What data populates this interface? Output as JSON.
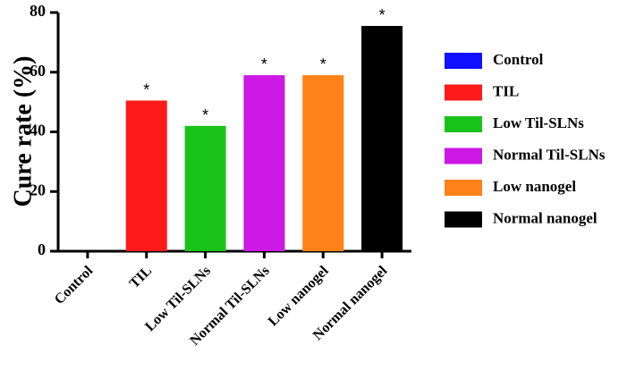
{
  "chart_data": {
    "type": "bar",
    "ylabel": "Cure rate (%)",
    "ylim": [
      0,
      80
    ],
    "yticks": [
      0,
      20,
      40,
      60,
      80
    ],
    "categories": [
      "Control",
      "TIL",
      "Low Til-SLNs",
      "Normal Til-SLNs",
      "Low nanogel",
      "Normal nanogel"
    ],
    "values": [
      0,
      50.5,
      42,
      59,
      59,
      75.5
    ],
    "colors": [
      "#1010ff",
      "#ff1a1a",
      "#19c219",
      "#cc19e6",
      "#ff8219",
      "#000000"
    ],
    "significance": [
      "",
      "*",
      "*",
      "*",
      "*",
      "*"
    ],
    "legend": {
      "position": "right",
      "entries": [
        "Control",
        "TIL",
        "Low Til-SLNs",
        "Normal Til-SLNs",
        "Low nanogel",
        "Normal nanogel"
      ]
    }
  }
}
